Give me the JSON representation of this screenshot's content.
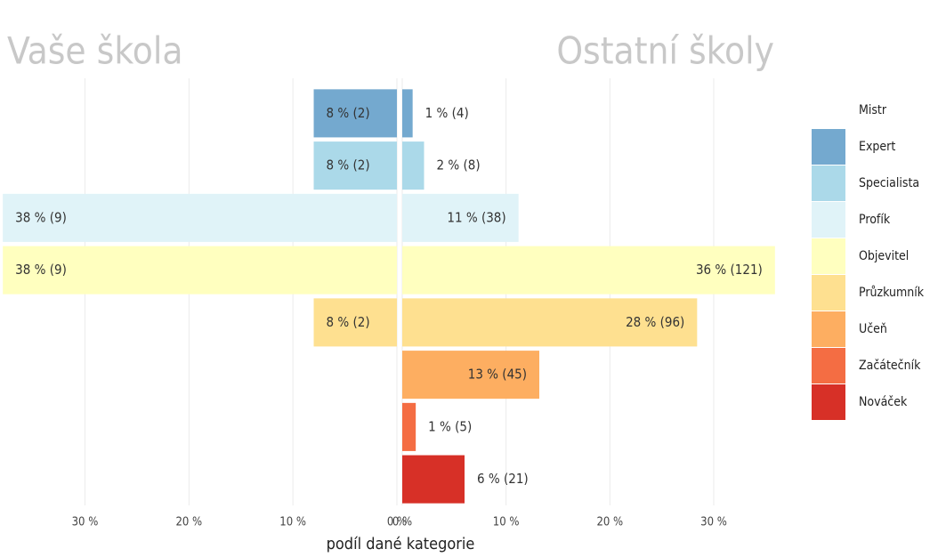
{
  "chart_data": {
    "type": "diverging_bar",
    "xlabel": "podíl dané kategorie",
    "categories": [
      "Mistr",
      "Expert",
      "Specialista",
      "Profík",
      "Objevitel",
      "Průzkumník",
      "Učeň",
      "Začátečník",
      "Nováček"
    ],
    "colors": [
      "#ffffff",
      "#74a9cf",
      "#abd9e9",
      "#e0f3f8",
      "#ffffbf",
      "#fee090",
      "#fdae61",
      "#f46d43",
      "#d73027"
    ],
    "grid": true,
    "legend": "right",
    "series": [
      {
        "name": "Vaše škola",
        "side": "left",
        "values": [
          null,
          8.0,
          8.0,
          37.9,
          37.9,
          8.0,
          null,
          null,
          null
        ],
        "value_labels": [
          null,
          "8 % (2)",
          "8 % (2)",
          "38 % (9)",
          "38 % (9)",
          "8 % (2)",
          null,
          null,
          null
        ],
        "xlim": [
          0,
          38
        ],
        "xticks": [
          {
            "value": 30,
            "label": "30 %"
          },
          {
            "value": 20,
            "label": "20 %"
          },
          {
            "value": 10,
            "label": "10 %"
          },
          {
            "value": 0,
            "label": "0 %"
          }
        ]
      },
      {
        "name": "Ostatní školy",
        "side": "right",
        "values": [
          null,
          1.0,
          2.1,
          11.2,
          35.9,
          28.4,
          13.2,
          1.3,
          6.0
        ],
        "value_labels": [
          null,
          "1 % (4)",
          "2 % (8)",
          "11 % (38)",
          "36 % (121)",
          "28 % (96)",
          "13 % (45)",
          "1 % (5)",
          "6 % (21)"
        ],
        "xlim": [
          0,
          36
        ],
        "xticks": [
          {
            "value": 0,
            "label": "0 %"
          },
          {
            "value": 10,
            "label": "10 %"
          },
          {
            "value": 20,
            "label": "20 %"
          },
          {
            "value": 30,
            "label": "30 %"
          }
        ]
      }
    ]
  }
}
